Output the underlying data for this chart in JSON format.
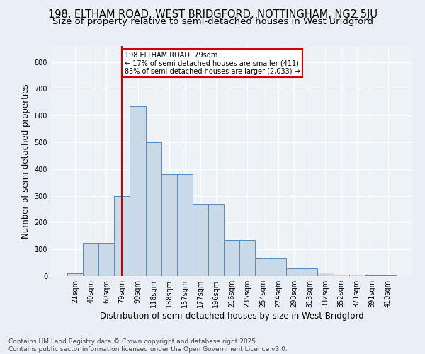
{
  "title1": "198, ELTHAM ROAD, WEST BRIDGFORD, NOTTINGHAM, NG2 5JU",
  "title2": "Size of property relative to semi-detached houses in West Bridgford",
  "xlabel": "Distribution of semi-detached houses by size in West Bridgford",
  "ylabel": "Number of semi-detached properties",
  "categories": [
    "21sqm",
    "40sqm",
    "60sqm",
    "79sqm",
    "99sqm",
    "118sqm",
    "138sqm",
    "157sqm",
    "177sqm",
    "196sqm",
    "216sqm",
    "235sqm",
    "254sqm",
    "274sqm",
    "293sqm",
    "313sqm",
    "332sqm",
    "352sqm",
    "371sqm",
    "391sqm",
    "410sqm"
  ],
  "values": [
    10,
    125,
    125,
    300,
    635,
    500,
    380,
    380,
    270,
    270,
    135,
    135,
    65,
    65,
    28,
    28,
    12,
    5,
    5,
    2,
    2
  ],
  "bar_color": "#c9d9e8",
  "bar_edge_color": "#5b8ab5",
  "vline_x_index": 3,
  "vline_color": "#cc0000",
  "annotation_title": "198 ELTHAM ROAD: 79sqm",
  "annotation_line1": "← 17% of semi-detached houses are smaller (411)",
  "annotation_line2": "83% of semi-detached houses are larger (2,033) →",
  "annotation_box_color": "#cc0000",
  "footer1": "Contains HM Land Registry data © Crown copyright and database right 2025.",
  "footer2": "Contains public sector information licensed under the Open Government Licence v3.0.",
  "ylim": [
    0,
    860
  ],
  "yticks": [
    0,
    100,
    200,
    300,
    400,
    500,
    600,
    700,
    800
  ],
  "bg_color": "#eaeff5",
  "plot_bg_color": "#edf2f7",
  "grid_color": "#ffffff",
  "title1_fontsize": 10.5,
  "title2_fontsize": 9.5,
  "tick_fontsize": 7,
  "label_fontsize": 8.5,
  "footer_fontsize": 6.5
}
